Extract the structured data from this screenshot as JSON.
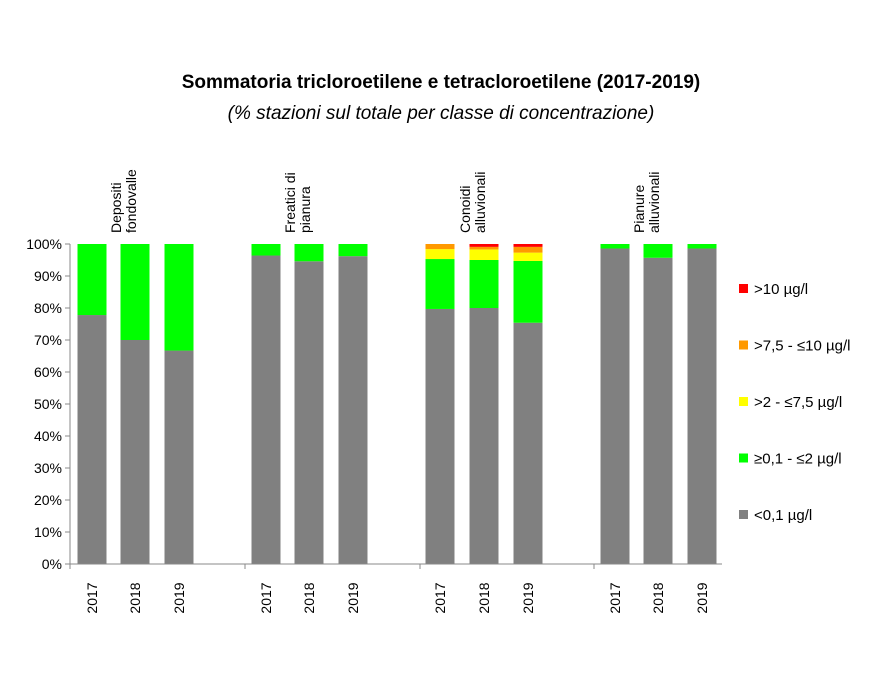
{
  "chart_data": {
    "type": "bar",
    "stacked": true,
    "title": "Sommatoria tricloroetilene e tetracloroetilene (2017-2019)",
    "subtitle": "(% stazioni sul totale per classe di concentrazione)",
    "groups": [
      {
        "label": "Depositi fondovalle",
        "label_lines": [
          "Depositi",
          "fondovalle"
        ]
      },
      {
        "label": "Freatici di pianura",
        "label_lines": [
          "Freatici di",
          "pianura"
        ]
      },
      {
        "label": "Conoidi alluvionali",
        "label_lines": [
          "Conoidi",
          "alluvionali"
        ]
      },
      {
        "label": "Pianure alluvionali",
        "label_lines": [
          "Pianure",
          "alluvionali"
        ]
      }
    ],
    "categories": [
      "2017",
      "2018",
      "2019",
      "2017",
      "2018",
      "2019",
      "2017",
      "2018",
      "2019",
      "2017",
      "2018",
      "2019"
    ],
    "series": [
      {
        "name": "<0,1 µg/l",
        "color": "#808080",
        "values": [
          77.8,
          70.0,
          66.7,
          96.4,
          94.6,
          96.2,
          79.7,
          80.0,
          75.4,
          98.6,
          95.7,
          98.6
        ]
      },
      {
        "name": "≥0,1 - ≤2 µg/l",
        "color": "#00ff00",
        "values": [
          22.2,
          30.0,
          33.3,
          3.6,
          5.4,
          3.8,
          15.6,
          15.0,
          19.3,
          1.4,
          4.3,
          1.4
        ]
      },
      {
        "name": ">2 - ≤7,5 µg/l",
        "color": "#ffff00",
        "values": [
          0,
          0,
          0,
          0,
          0,
          0,
          3.1,
          3.3,
          2.6,
          0,
          0,
          0
        ]
      },
      {
        "name": ">7,5 - ≤10 µg/l",
        "color": "#ff9900",
        "values": [
          0,
          0,
          0,
          0,
          0,
          0,
          1.6,
          0.8,
          1.8,
          0,
          0,
          0
        ]
      },
      {
        "name": ">10 µg/l",
        "color": "#ff0000",
        "values": [
          0,
          0,
          0,
          0,
          0,
          0,
          0,
          0.9,
          0.9,
          0,
          0,
          0
        ]
      }
    ],
    "ylim": [
      0,
      100
    ],
    "y_ticks": [
      "0%",
      "10%",
      "20%",
      "30%",
      "40%",
      "50%",
      "60%",
      "70%",
      "80%",
      "90%",
      "100%"
    ],
    "grid": false,
    "legend_position": "right"
  }
}
